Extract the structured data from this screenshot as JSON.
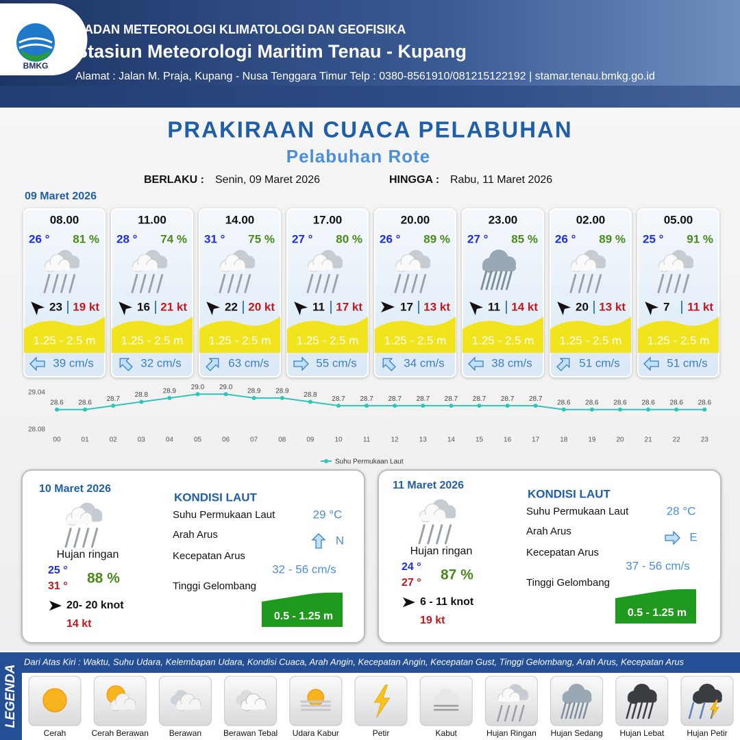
{
  "header": {
    "logo_text": "BMKG",
    "agency": "BADAN METEOROLOGI KLIMATOLOGI DAN GEOFISIKA",
    "station": "Stasiun Meteorologi Maritim Tenau - Kupang",
    "address": "Alamat : Jalan M. Praja, Kupang - Nusa Tenggara Timur Telp : 0380-8561910/081215122192  | stamar.tenau.bmkg.go.id"
  },
  "title": "PRAKIRAAN CUACA PELABUHAN",
  "subtitle": "Pelabuhan Rote",
  "validity": {
    "from_label": "BERLAKU :",
    "from": "Senin, 09 Maret 2026",
    "to_label": "HINGGA :",
    "to": "Rabu, 11 Maret 2026"
  },
  "day1": {
    "date": "09 Maret 2026",
    "cards": [
      {
        "time": "08.00",
        "temp": "26 °",
        "humidity": "81 %",
        "wind": "23",
        "gust": "19 kt",
        "wave": "1.25 - 2.5 m",
        "current": "39 cm/s"
      },
      {
        "time": "11.00",
        "temp": "28 °",
        "humidity": "74 %",
        "wind": "16",
        "gust": "21 kt",
        "wave": "1.25 - 2.5 m",
        "current": "32 cm/s"
      },
      {
        "time": "14.00",
        "temp": "31 °",
        "humidity": "75 %",
        "wind": "22",
        "gust": "20 kt",
        "wave": "1.25 - 2.5 m",
        "current": "63 cm/s"
      },
      {
        "time": "17.00",
        "temp": "27 °",
        "humidity": "80 %",
        "wind": "11",
        "gust": "17 kt",
        "wave": "1.25 - 2.5 m",
        "current": "55 cm/s"
      },
      {
        "time": "20.00",
        "temp": "26 °",
        "humidity": "89 %",
        "wind": "17",
        "gust": "13 kt",
        "wave": "1.25 - 2.5 m",
        "current": "34 cm/s"
      },
      {
        "time": "23.00",
        "temp": "27 °",
        "humidity": "85 %",
        "wind": "11",
        "gust": "14 kt",
        "wave": "1.25 - 2.5 m",
        "current": "38 cm/s"
      },
      {
        "time": "02.00",
        "temp": "26 °",
        "humidity": "89 %",
        "wind": "20",
        "gust": "13 kt",
        "wave": "1.25 - 2.5 m",
        "current": "51 cm/s"
      },
      {
        "time": "05.00",
        "temp": "25 °",
        "humidity": "91 %",
        "wind": "7",
        "gust": "11 kt",
        "wave": "1.25 - 2.5 m",
        "current": "51 cm/s"
      }
    ]
  },
  "chart_data": {
    "type": "line",
    "categories": [
      "00",
      "01",
      "02",
      "03",
      "04",
      "05",
      "06",
      "07",
      "08",
      "09",
      "10",
      "11",
      "12",
      "13",
      "14",
      "15",
      "16",
      "17",
      "18",
      "19",
      "20",
      "21",
      "22",
      "23"
    ],
    "series": [
      {
        "name": "Suhu Permukaan Laut",
        "color": "#2ec4bb",
        "values": [
          28.6,
          28.6,
          28.7,
          28.8,
          28.9,
          29.0,
          29.0,
          28.9,
          28.9,
          28.8,
          28.7,
          28.7,
          28.7,
          28.7,
          28.7,
          28.7,
          28.7,
          28.7,
          28.6,
          28.6,
          28.6,
          28.6,
          28.6,
          28.6
        ],
        "value_labels": [
          "28.6",
          "28.6",
          "28.7",
          "28.8",
          "28.9",
          "29.0",
          "29.0",
          "28.9",
          "28.9",
          "28.8",
          "28.7",
          "28.7",
          "28.7",
          "28.7",
          "28.7",
          "28.7",
          "28.7",
          "28.7",
          "28.6",
          "28.6",
          "28.6",
          "28.6",
          "28.6",
          "28.6"
        ]
      }
    ],
    "ylim": [
      28.08,
      29.04
    ],
    "yticks": [
      28.08,
      29.04
    ],
    "legend": "bottom"
  },
  "days": [
    {
      "date": "10 Maret 2026",
      "condition": "Hujan ringan",
      "temp_min": "25 °",
      "temp_max": "31 °",
      "humidity": "88 %",
      "wind": "20- 20 knot",
      "gust": "14 kt",
      "sea_title": "KONDISI LAUT",
      "sst_label": "Suhu Permukaan Laut",
      "sst": "29 °C",
      "dir_label": "Arah Arus",
      "dir": "N",
      "speed_label": "Kecepatan Arus",
      "speed": "32 - 56 cm/s",
      "wave_label": "Tinggi Gelombang",
      "wave": "0.5 - 1.25 m"
    },
    {
      "date": "11 Maret 2026",
      "condition": "Hujan ringan",
      "temp_min": "24 °",
      "temp_max": "27 °",
      "humidity": "87 %",
      "wind": "6 - 11 knot",
      "gust": "19 kt",
      "sea_title": "KONDISI LAUT",
      "sst_label": "Suhu Permukaan Laut",
      "sst": "28 °C",
      "dir_label": "Arah Arus",
      "dir": "E",
      "speed_label": "Kecepatan Arus",
      "speed": "37 - 56 cm/s",
      "wave_label": "Tinggi Gelombang",
      "wave": "0.5 - 1.25 m"
    }
  ],
  "legend": {
    "title": "LEGENDA",
    "description": "Dari Atas Kiri : Waktu, Suhu Udara, Kelembapan Udara, Kondisi Cuaca, Arah Angin, Kecepatan Angin, Kecepatan Gust, Tinggi Gelombang, Arah Arus, Kecepatan Arus",
    "items": [
      "Cerah",
      "Cerah Berawan",
      "Berawan",
      "Berawan Tebal",
      "Udara Kabur",
      "Petir",
      "Kabut",
      "Hujan Ringan",
      "Hujan Sedang",
      "Hujan Lebat",
      "Hujan Petir"
    ]
  }
}
